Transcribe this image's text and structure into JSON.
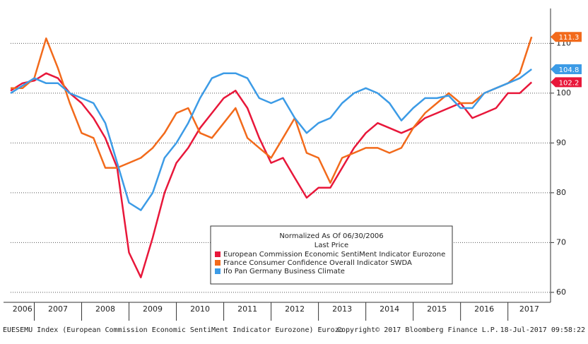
{
  "chart_data": {
    "type": "line",
    "legend_title": "Normalized As Of 06/30/2006",
    "legend_subtitle": "Last Price",
    "footer_left": "EUESEMU Index (European Commission Economic SentiMent Indicator Eurozone) Eurozo",
    "footer_center": "Copyright© 2017 Bloomberg Finance L.P.",
    "footer_right": "18-Jul-2017 09:58:22",
    "x": [
      2006.5,
      2006.75,
      2007,
      2007.25,
      2007.5,
      2007.75,
      2008,
      2008.25,
      2008.5,
      2008.75,
      2009,
      2009.25,
      2009.5,
      2009.75,
      2010,
      2010.25,
      2010.5,
      2010.75,
      2011,
      2011.25,
      2011.5,
      2011.75,
      2012,
      2012.25,
      2012.5,
      2012.75,
      2013,
      2013.25,
      2013.5,
      2013.75,
      2014,
      2014.25,
      2014.5,
      2014.75,
      2015,
      2015.25,
      2015.5,
      2015.75,
      2016,
      2016.25,
      2016.5,
      2016.75,
      2017,
      2017.25,
      2017.5
    ],
    "series": [
      {
        "name": "European Commission Economic SentiMent Indicator Eurozone",
        "color": "#e8173a",
        "values": [
          100.5,
          102,
          102.5,
          104,
          103,
          100,
          98,
          95,
          91,
          85,
          68,
          63,
          71,
          80,
          86,
          89,
          93,
          96,
          99,
          100.5,
          97,
          91,
          86,
          87,
          83,
          79,
          81,
          81,
          85,
          89,
          92,
          94,
          93,
          92,
          93,
          95,
          96,
          97,
          98,
          95,
          96,
          97,
          100,
          100,
          102.2
        ]
      },
      {
        "name": "France Consumer Confidence Overall Indicator SWDA",
        "color": "#f26a1b",
        "values": [
          101,
          101,
          103,
          111,
          105,
          98,
          92,
          91,
          85,
          85,
          86,
          87,
          89,
          92,
          96,
          97,
          92,
          91,
          94,
          97,
          91,
          89,
          87,
          91,
          95,
          88,
          87,
          82,
          87,
          88,
          89,
          89,
          88,
          89,
          93,
          96,
          98,
          100,
          98,
          98,
          100,
          101,
          102,
          104,
          111.3
        ]
      },
      {
        "name": "Ifo Pan Germany Business Climate",
        "color": "#3c9be6",
        "values": [
          100,
          101.5,
          103,
          102,
          102,
          100,
          99,
          98,
          94,
          86,
          78,
          76.5,
          80,
          87,
          90,
          94,
          99,
          103,
          104,
          104,
          103,
          99,
          98,
          99,
          95,
          92,
          94,
          95,
          98,
          100,
          101,
          100,
          98,
          94.5,
          97,
          99,
          99,
          99.5,
          97,
          97,
          100,
          101,
          102,
          103,
          104.8
        ]
      }
    ],
    "xlim": [
      2006.5,
      2017.9
    ],
    "xticks": [
      2006,
      2007,
      2008,
      2009,
      2010,
      2011,
      2012,
      2013,
      2014,
      2015,
      2016,
      2017
    ],
    "ylim": [
      58,
      117
    ],
    "yticks": [
      60,
      70,
      80,
      90,
      100,
      110
    ],
    "grid": true
  }
}
